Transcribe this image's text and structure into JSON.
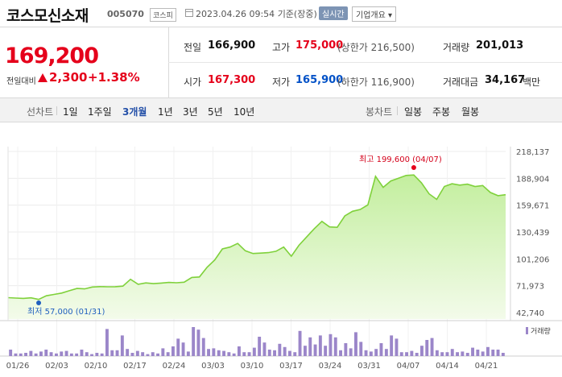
{
  "header": {
    "stock_name": "코스모신소재",
    "stock_code": "005070",
    "market": "코스피",
    "datetime": "2023.04.26 09:54",
    "basis": "기준(장중)",
    "realtime_label": "실시간",
    "company_label": "기업개요 ▾"
  },
  "summary": {
    "price": "169,200",
    "change_label": "전일대비",
    "change_value": "2,300",
    "change_pct": "+1.38%",
    "prev_close_label": "전일",
    "prev_close": "166,900",
    "high_label": "고가",
    "high": "175,000",
    "upper_limit": "(상한가 216,500)",
    "volume_label": "거래량",
    "volume": "201,013",
    "open_label": "시가",
    "open": "167,300",
    "low_label": "저가",
    "low": "165,900",
    "lower_limit": "(하한가 116,900)",
    "amount_label": "거래대금",
    "amount": "34,167",
    "amount_unit": "백만"
  },
  "tabs": {
    "line_label": "선차트",
    "line_tabs": [
      "1일",
      "1주일",
      "3개월",
      "1년",
      "3년",
      "5년",
      "10년"
    ],
    "active": "3개월",
    "candle_label": "봉차트",
    "candle_tabs": [
      "일봉",
      "주봉",
      "월봉"
    ]
  },
  "chart_data": {
    "type": "area",
    "yticks": [
      "218,137",
      "188,904",
      "159,671",
      "130,439",
      "101,206",
      "71,973",
      "42,740"
    ],
    "ylim": [
      42740,
      218137
    ],
    "xticks": [
      "01/26",
      "02/03",
      "02/10",
      "02/17",
      "02/24",
      "03/03",
      "03/10",
      "03/17",
      "03/24",
      "03/31",
      "04/07",
      "04/14",
      "04/21"
    ],
    "high_annotation": "최고 199,600 (04/07)",
    "low_annotation": "최저 57,000 (01/31)",
    "volume_legend": "거래량",
    "colors": {
      "line": "#7fd13b",
      "fill_top": "#c3ee9e",
      "fill_bottom": "#f3fbea",
      "volume": "#9b86c9",
      "high": "#e5001b",
      "low": "#1f5fbf"
    },
    "prices": [
      59000,
      58500,
      58200,
      58800,
      57000,
      61000,
      62500,
      64000,
      66500,
      69000,
      68500,
      70500,
      71000,
      70800,
      70900,
      71500,
      79000,
      73500,
      75000,
      74200,
      74800,
      75500,
      75200,
      75800,
      81000,
      81500,
      92000,
      100000,
      112000,
      114000,
      118000,
      110000,
      107000,
      107500,
      108000,
      109500,
      114000,
      104000,
      116000,
      125000,
      134000,
      142000,
      136000,
      135500,
      148000,
      153000,
      155000,
      160000,
      191000,
      179000,
      186000,
      189000,
      192000,
      192500,
      184000,
      172000,
      166000,
      180000,
      183000,
      181500,
      182500,
      180000,
      181000,
      173500,
      170000,
      171000
    ],
    "volumes": [
      1.0,
      0.4,
      0.4,
      0.5,
      0.8,
      0.4,
      0.7,
      1.0,
      0.6,
      0.4,
      0.7,
      0.8,
      0.4,
      0.4,
      1.0,
      0.6,
      0.3,
      0.5,
      0.4,
      4.2,
      0.9,
      0.9,
      3.2,
      1.1,
      0.5,
      0.8,
      0.6,
      0.3,
      0.6,
      0.4,
      1.2,
      0.6,
      1.5,
      2.7,
      2.1,
      0.7,
      4.5,
      4.1,
      2.8,
      1.1,
      1.2,
      0.9,
      0.8,
      0.6,
      0.4,
      1.5,
      0.6,
      0.6,
      1.3,
      3.0,
      2.1,
      1.0,
      0.9,
      1.9,
      1.4,
      0.8,
      0.6,
      3.9,
      1.6,
      2.9,
      1.8,
      3.2,
      1.6,
      3.4,
      2.9,
      0.9,
      2.0,
      1.2,
      3.7,
      2.2,
      0.9,
      0.7,
      1.1,
      2.0,
      1.1,
      3.2,
      2.7,
      0.6,
      0.6,
      0.8,
      0.5,
      1.6,
      2.5,
      2.8,
      0.9,
      0.6,
      0.6,
      1.1,
      0.6,
      0.7,
      0.5,
      1.3,
      1.0,
      0.7,
      1.4,
      1.0,
      1.0,
      0.5
    ]
  }
}
